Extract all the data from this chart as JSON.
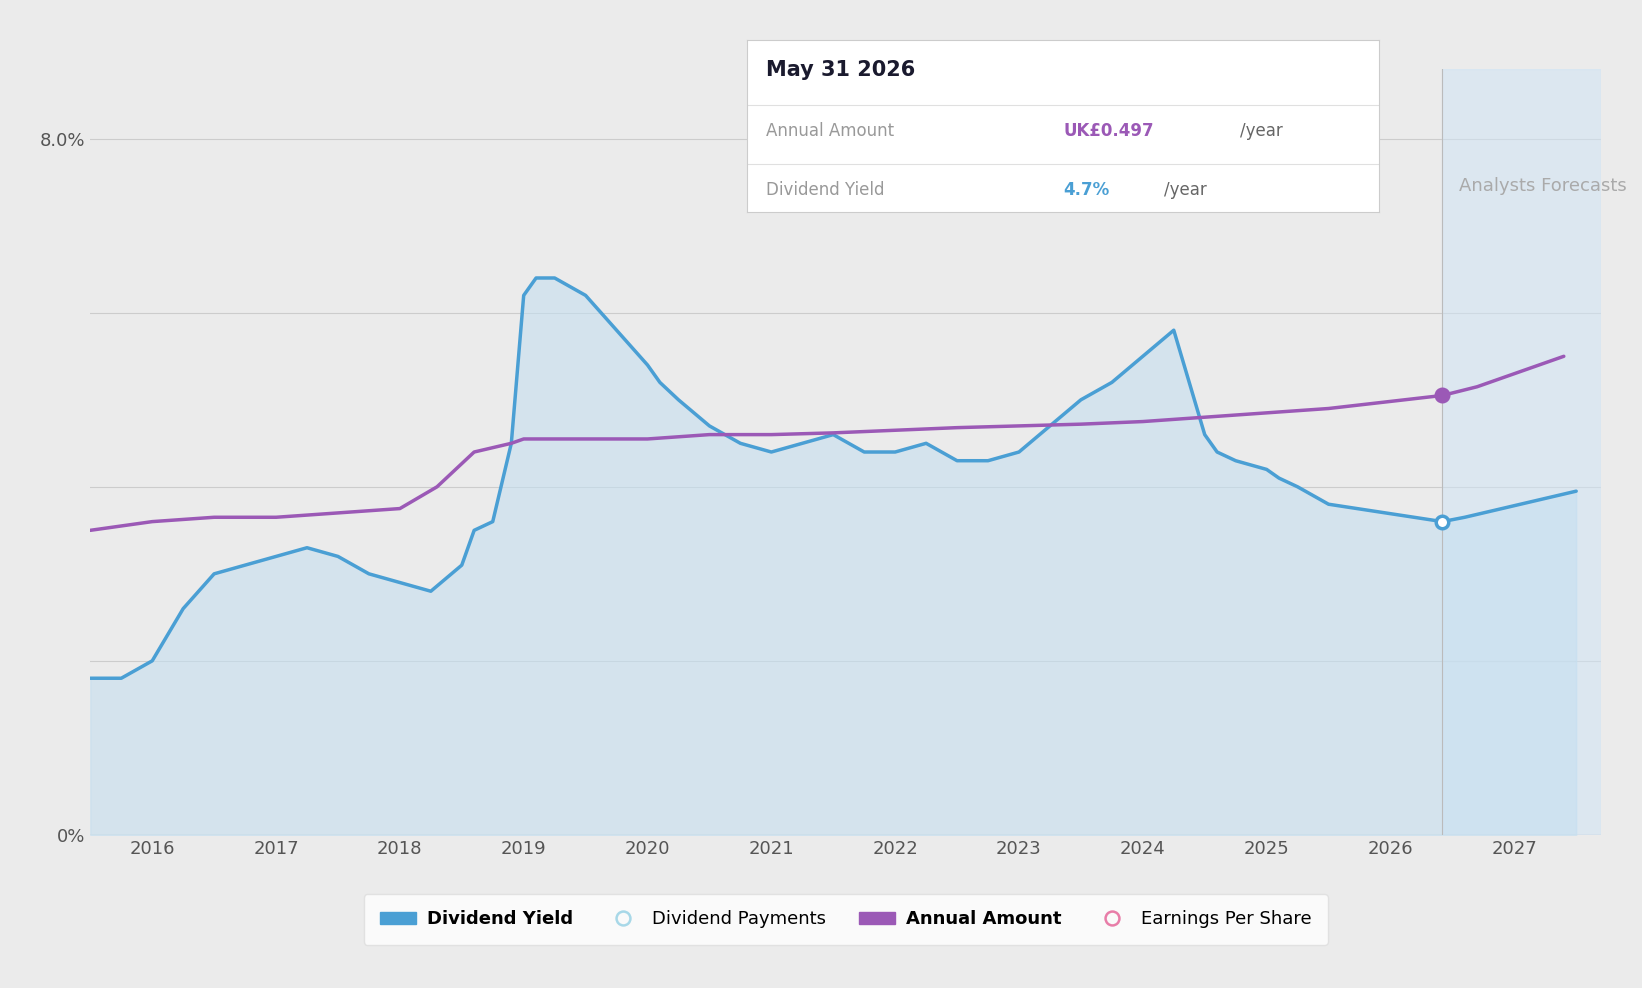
{
  "bg_color": "#ebebeb",
  "plot_bg_color": "#ebebeb",
  "ylim": [
    0,
    8.8
  ],
  "xlim": [
    2015.5,
    2027.7
  ],
  "xticks": [
    2016,
    2017,
    2018,
    2019,
    2020,
    2021,
    2022,
    2023,
    2024,
    2025,
    2026,
    2027
  ],
  "forecast_start": 2026.42,
  "dividend_yield_x": [
    2015.5,
    2015.75,
    2016.0,
    2016.25,
    2016.5,
    2016.75,
    2017.0,
    2017.25,
    2017.5,
    2017.75,
    2018.0,
    2018.25,
    2018.5,
    2018.6,
    2018.75,
    2018.9,
    2019.0,
    2019.1,
    2019.25,
    2019.5,
    2019.75,
    2020.0,
    2020.1,
    2020.25,
    2020.5,
    2020.75,
    2021.0,
    2021.25,
    2021.5,
    2021.75,
    2022.0,
    2022.25,
    2022.5,
    2022.75,
    2023.0,
    2023.25,
    2023.5,
    2023.75,
    2024.0,
    2024.25,
    2024.5,
    2024.6,
    2024.75,
    2025.0,
    2025.1,
    2025.25,
    2025.5,
    2026.42,
    2026.6,
    2026.9,
    2027.2,
    2027.5
  ],
  "dividend_yield_y": [
    1.8,
    1.8,
    2.0,
    2.6,
    3.0,
    3.1,
    3.2,
    3.3,
    3.2,
    3.0,
    2.9,
    2.8,
    3.1,
    3.5,
    3.6,
    4.5,
    6.2,
    6.4,
    6.4,
    6.2,
    5.8,
    5.4,
    5.2,
    5.0,
    4.7,
    4.5,
    4.4,
    4.5,
    4.6,
    4.4,
    4.4,
    4.5,
    4.3,
    4.3,
    4.4,
    4.7,
    5.0,
    5.2,
    5.5,
    5.8,
    4.6,
    4.4,
    4.3,
    4.2,
    4.1,
    4.0,
    3.8,
    3.6,
    3.65,
    3.75,
    3.85,
    3.95
  ],
  "dividend_yield_color": "#4a9fd4",
  "dividend_yield_fill_color": "#c5dff0",
  "dividend_yield_fill_alpha": 0.6,
  "annual_amount_x": [
    2015.5,
    2016.0,
    2016.5,
    2017.0,
    2017.5,
    2018.0,
    2018.3,
    2018.6,
    2018.9,
    2019.0,
    2019.5,
    2020.0,
    2020.5,
    2021.0,
    2021.5,
    2022.0,
    2022.5,
    2023.0,
    2023.5,
    2024.0,
    2024.5,
    2025.0,
    2025.5,
    2026.42,
    2026.7,
    2027.0,
    2027.4
  ],
  "annual_amount_y": [
    3.5,
    3.6,
    3.65,
    3.65,
    3.7,
    3.75,
    4.0,
    4.4,
    4.5,
    4.55,
    4.55,
    4.55,
    4.6,
    4.6,
    4.62,
    4.65,
    4.68,
    4.7,
    4.72,
    4.75,
    4.8,
    4.85,
    4.9,
    5.05,
    5.15,
    5.3,
    5.5
  ],
  "annual_amount_color": "#9b59b6",
  "dot_yield_x": 2026.42,
  "dot_yield_y": 3.6,
  "dot_amount_x": 2026.42,
  "dot_amount_y": 5.05,
  "tooltip_title": "May 31 2026",
  "tooltip_annual_label": "Annual Amount",
  "tooltip_annual_value_colored": "UK£0.497",
  "tooltip_annual_suffix": "/year",
  "tooltip_yield_label": "Dividend Yield",
  "tooltip_yield_value_colored": "4.7%",
  "tooltip_yield_suffix": "/year",
  "tooltip_annual_color": "#9b59b6",
  "tooltip_yield_color": "#4a9fd4",
  "legend_items": [
    {
      "label": "Dividend Yield",
      "color": "#4a9fd4",
      "filled": true
    },
    {
      "label": "Dividend Payments",
      "color": "#a8d8e8",
      "filled": false
    },
    {
      "label": "Annual Amount",
      "color": "#9b59b6",
      "filled": true
    },
    {
      "label": "Earnings Per Share",
      "color": "#e87da8",
      "filled": false
    }
  ],
  "forecast_shade_color": "#d0e4f5",
  "forecast_shade_alpha": 0.55,
  "grid_color": "#cccccc"
}
